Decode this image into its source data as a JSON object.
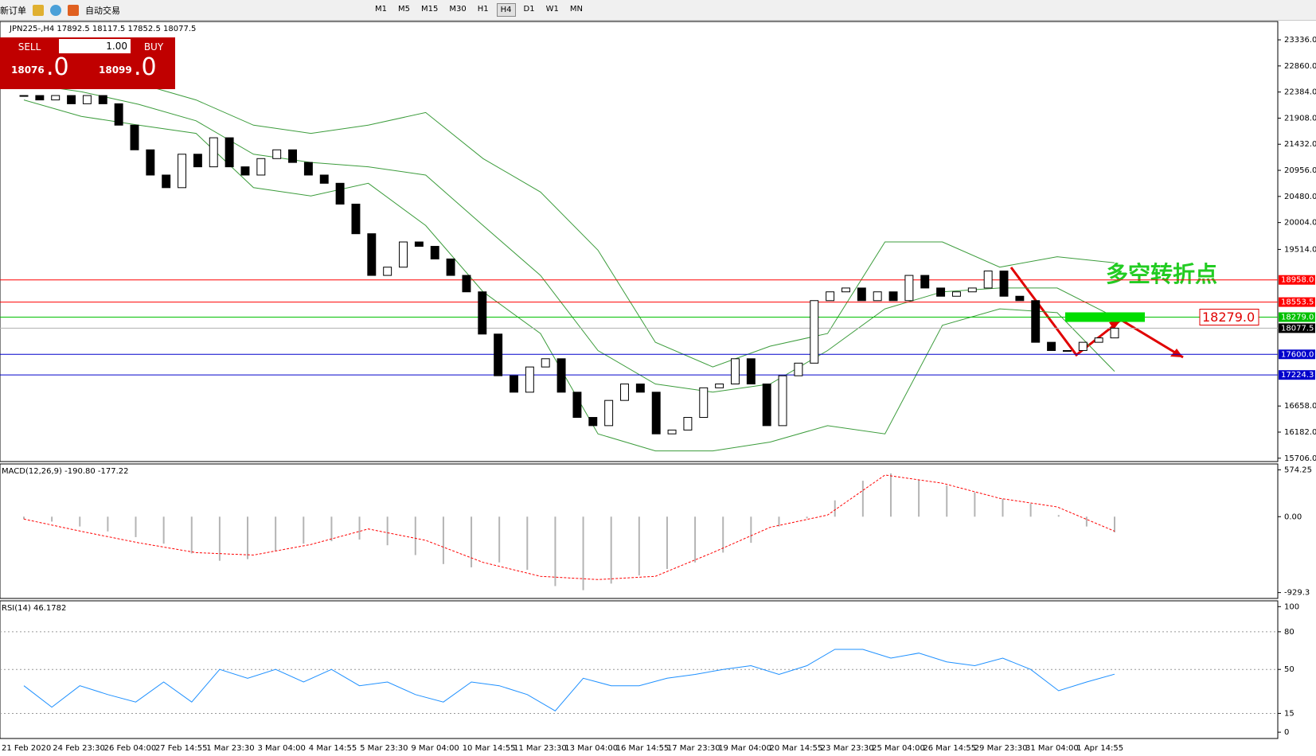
{
  "toolbar": {
    "new_order": "新订单",
    "auto_trade": "自动交易",
    "timeframes": [
      "M1",
      "M5",
      "M15",
      "M30",
      "H1",
      "H4",
      "D1",
      "W1",
      "MN"
    ]
  },
  "trade_panel": {
    "sell": "SELL",
    "lot": "1.00",
    "buy": "BUY",
    "sell_price": "18076",
    "sell_frac": ".0",
    "buy_price": "18099",
    "buy_frac": ".0"
  },
  "chart_data": [
    {
      "type": "candlestick",
      "title": "JPN225-,H4 17892.5 18117.5 17852.5 18077.5",
      "ylim": [
        15645,
        23656
      ],
      "yticks": [
        {
          "value": 23336,
          "label": "23336.0"
        },
        {
          "value": 22860,
          "label": "22860.0"
        },
        {
          "value": 22384,
          "label": "22384.0"
        },
        {
          "value": 21908,
          "label": "21908.0"
        },
        {
          "value": 21432,
          "label": "21432.0"
        },
        {
          "value": 20956,
          "label": "20956.0"
        },
        {
          "value": 20480,
          "label": "20480.0"
        },
        {
          "value": 20004,
          "label": "20004.0"
        },
        {
          "value": 19514,
          "label": "19514.0"
        },
        {
          "value": 16658,
          "label": "16658.0"
        },
        {
          "value": 16182,
          "label": "16182.0"
        },
        {
          "value": 15706,
          "label": "15706.0"
        }
      ],
      "close": [
        22320,
        22240,
        22320,
        22170,
        22320,
        22170,
        21780,
        21330,
        20870,
        20640,
        21250,
        21020,
        21550,
        21020,
        20870,
        21170,
        21330,
        21100,
        20870,
        20720,
        20340,
        19800,
        19040,
        19190,
        19650,
        19570,
        19340,
        19040,
        18740,
        17970,
        17210,
        16910,
        17370,
        17520,
        16910,
        16450,
        16300,
        16760,
        17060,
        16910,
        16150,
        16220,
        16450,
        16990,
        17060,
        17520,
        17060,
        16300,
        17210,
        17440,
        18580,
        18740,
        18810,
        18580,
        18740,
        18580,
        19040,
        18810,
        18660,
        18740,
        18810,
        19120,
        18660,
        18580,
        17820,
        17670,
        17670,
        17820,
        17900,
        18077.5
      ],
      "bands": [
        {
          "color": "#3c9c3c",
          "values": [
            22850,
            22930,
            22540,
            22240,
            21780,
            21630,
            21780,
            22010,
            21170,
            20560,
            19500,
            17820,
            17370,
            17750,
            17980,
            19650,
            19650,
            19190,
            19380,
            19270
          ]
        },
        {
          "color": "#3c9c3c",
          "values": [
            22540,
            22390,
            22160,
            21860,
            21250,
            21100,
            21020,
            20870,
            19950,
            19040,
            17670,
            17060,
            16910,
            17060,
            17670,
            18430,
            18740,
            18810,
            18810,
            18280
          ]
        },
        {
          "color": "#3c9c3c",
          "values": [
            22240,
            21940,
            21780,
            21630,
            20640,
            20490,
            20720,
            19950,
            18740,
            17980,
            16150,
            15840,
            15840,
            16000,
            16300,
            16150,
            18130,
            18430,
            18360,
            17290
          ]
        }
      ],
      "levels": [
        {
          "value": 18958,
          "label": "18958.0",
          "color": "#ff0000"
        },
        {
          "value": 18553.5,
          "label": "18553.5",
          "color": "#ff0000"
        },
        {
          "value": 18279,
          "label": "18279.0",
          "color": "#00c000"
        },
        {
          "value": 18077.5,
          "label": "18077.5",
          "color": "#000000"
        },
        {
          "value": 17600,
          "label": "17600.0",
          "color": "#0000cc"
        },
        {
          "value": 17224.3,
          "label": "17224.3",
          "color": "#0000cc"
        }
      ],
      "annotation": "多空转折点",
      "marker": {
        "value": 18279,
        "label": "18279.0"
      },
      "time_labels": [
        "21 Feb 2020",
        "24 Feb 23:30",
        "26 Feb 04:00",
        "27 Feb 14:55",
        "1 Mar 23:30",
        "3 Mar 04:00",
        "4 Mar 14:55",
        "5 Mar 23:30",
        "9 Mar 04:00",
        "10 Mar 14:55",
        "11 Mar 23:30",
        "13 Mar 04:00",
        "16 Mar 14:55",
        "17 Mar 23:30",
        "19 Mar 04:00",
        "20 Mar 14:55",
        "23 Mar 23:30",
        "25 Mar 04:00",
        "26 Mar 14:55",
        "29 Mar 23:30",
        "31 Mar 04:00",
        "1 Apr 14:55"
      ]
    },
    {
      "type": "macd",
      "title": "MACD(12,26,9) -190.80 -177.22",
      "ylim": [
        -1001,
        636
      ],
      "yticks": [
        574.25,
        {
          "value": 0,
          "label": "0.00"
        },
        -929.3
      ],
      "histogram": {
        "color": "#b4b4b4",
        "values": [
          -30,
          -60,
          -120,
          -180,
          -250,
          -330,
          -450,
          -540,
          -520,
          -420,
          -330,
          -300,
          -280,
          -350,
          -470,
          -580,
          -620,
          -560,
          -650,
          -850,
          -900,
          -820,
          -720,
          -640,
          -560,
          -440,
          -320,
          -120,
          -20,
          200,
          440,
          530,
          450,
          380,
          300,
          220,
          160,
          20,
          -120,
          -190.8
        ]
      },
      "signal": {
        "color": "#ff0000",
        "values": [
          -30,
          -180,
          -320,
          -440,
          -470,
          -340,
          -150,
          -290,
          -560,
          -730,
          -770,
          -730,
          -440,
          -130,
          20,
          510,
          410,
          225,
          120,
          -177.22
        ]
      }
    },
    {
      "type": "rsi",
      "title": "RSI(14) 46.1782",
      "ylim": [
        -5,
        104
      ],
      "yticks": [
        100,
        80,
        50,
        15,
        0
      ],
      "levels": [
        80,
        50,
        15
      ],
      "color": "#1e90ff",
      "values": [
        37,
        20,
        37,
        30,
        24,
        40,
        24,
        50,
        43,
        50,
        40,
        50,
        37,
        40,
        30,
        24,
        40,
        37,
        30,
        17,
        43,
        37,
        37,
        43,
        46,
        50,
        53,
        46,
        53,
        66,
        66,
        59,
        63,
        56,
        53,
        59,
        50,
        33,
        40,
        46.1782
      ]
    }
  ]
}
